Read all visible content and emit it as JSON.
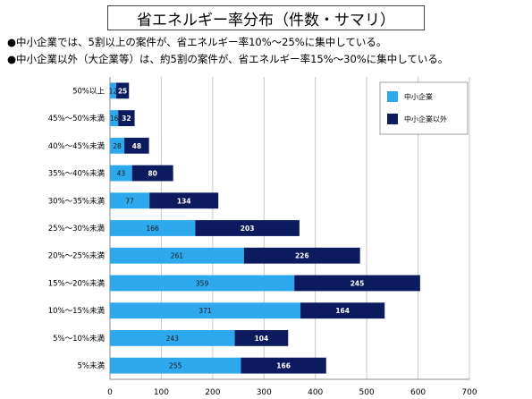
{
  "title": "省エネルギー率分布（件数・サマリ）",
  "summary": [
    "●中小企業では、5割以上の案件が、省エネルギー率10%〜25%に集中している。",
    "●中小企業以外（大企業等）は、約5割の案件が、省エネルギー率15%〜30%に集中している。"
  ],
  "colors": {
    "sme": "#2ea8ec",
    "non_sme": "#0c1a5e"
  },
  "chart_data": {
    "type": "bar",
    "orientation": "horizontal",
    "stacked": true,
    "categories": [
      "50%以上",
      "45%〜50%未満",
      "40%〜45%未満",
      "35%〜40%未満",
      "30%〜35%未満",
      "25%〜30%未満",
      "20%〜25%未満",
      "15%〜20%未満",
      "10%〜15%未満",
      "5%〜10%未満",
      "5%未満"
    ],
    "series": [
      {
        "name": "中小企業",
        "values": [
          12,
          16,
          28,
          43,
          77,
          166,
          261,
          359,
          371,
          243,
          255
        ]
      },
      {
        "name": "中小企業以外",
        "values": [
          25,
          32,
          48,
          80,
          134,
          203,
          226,
          245,
          164,
          104,
          166
        ]
      }
    ],
    "xlim": [
      0,
      700
    ],
    "xticks": [
      0,
      100,
      200,
      300,
      400,
      500,
      600,
      700
    ],
    "grid": true,
    "legend": "top-right"
  }
}
